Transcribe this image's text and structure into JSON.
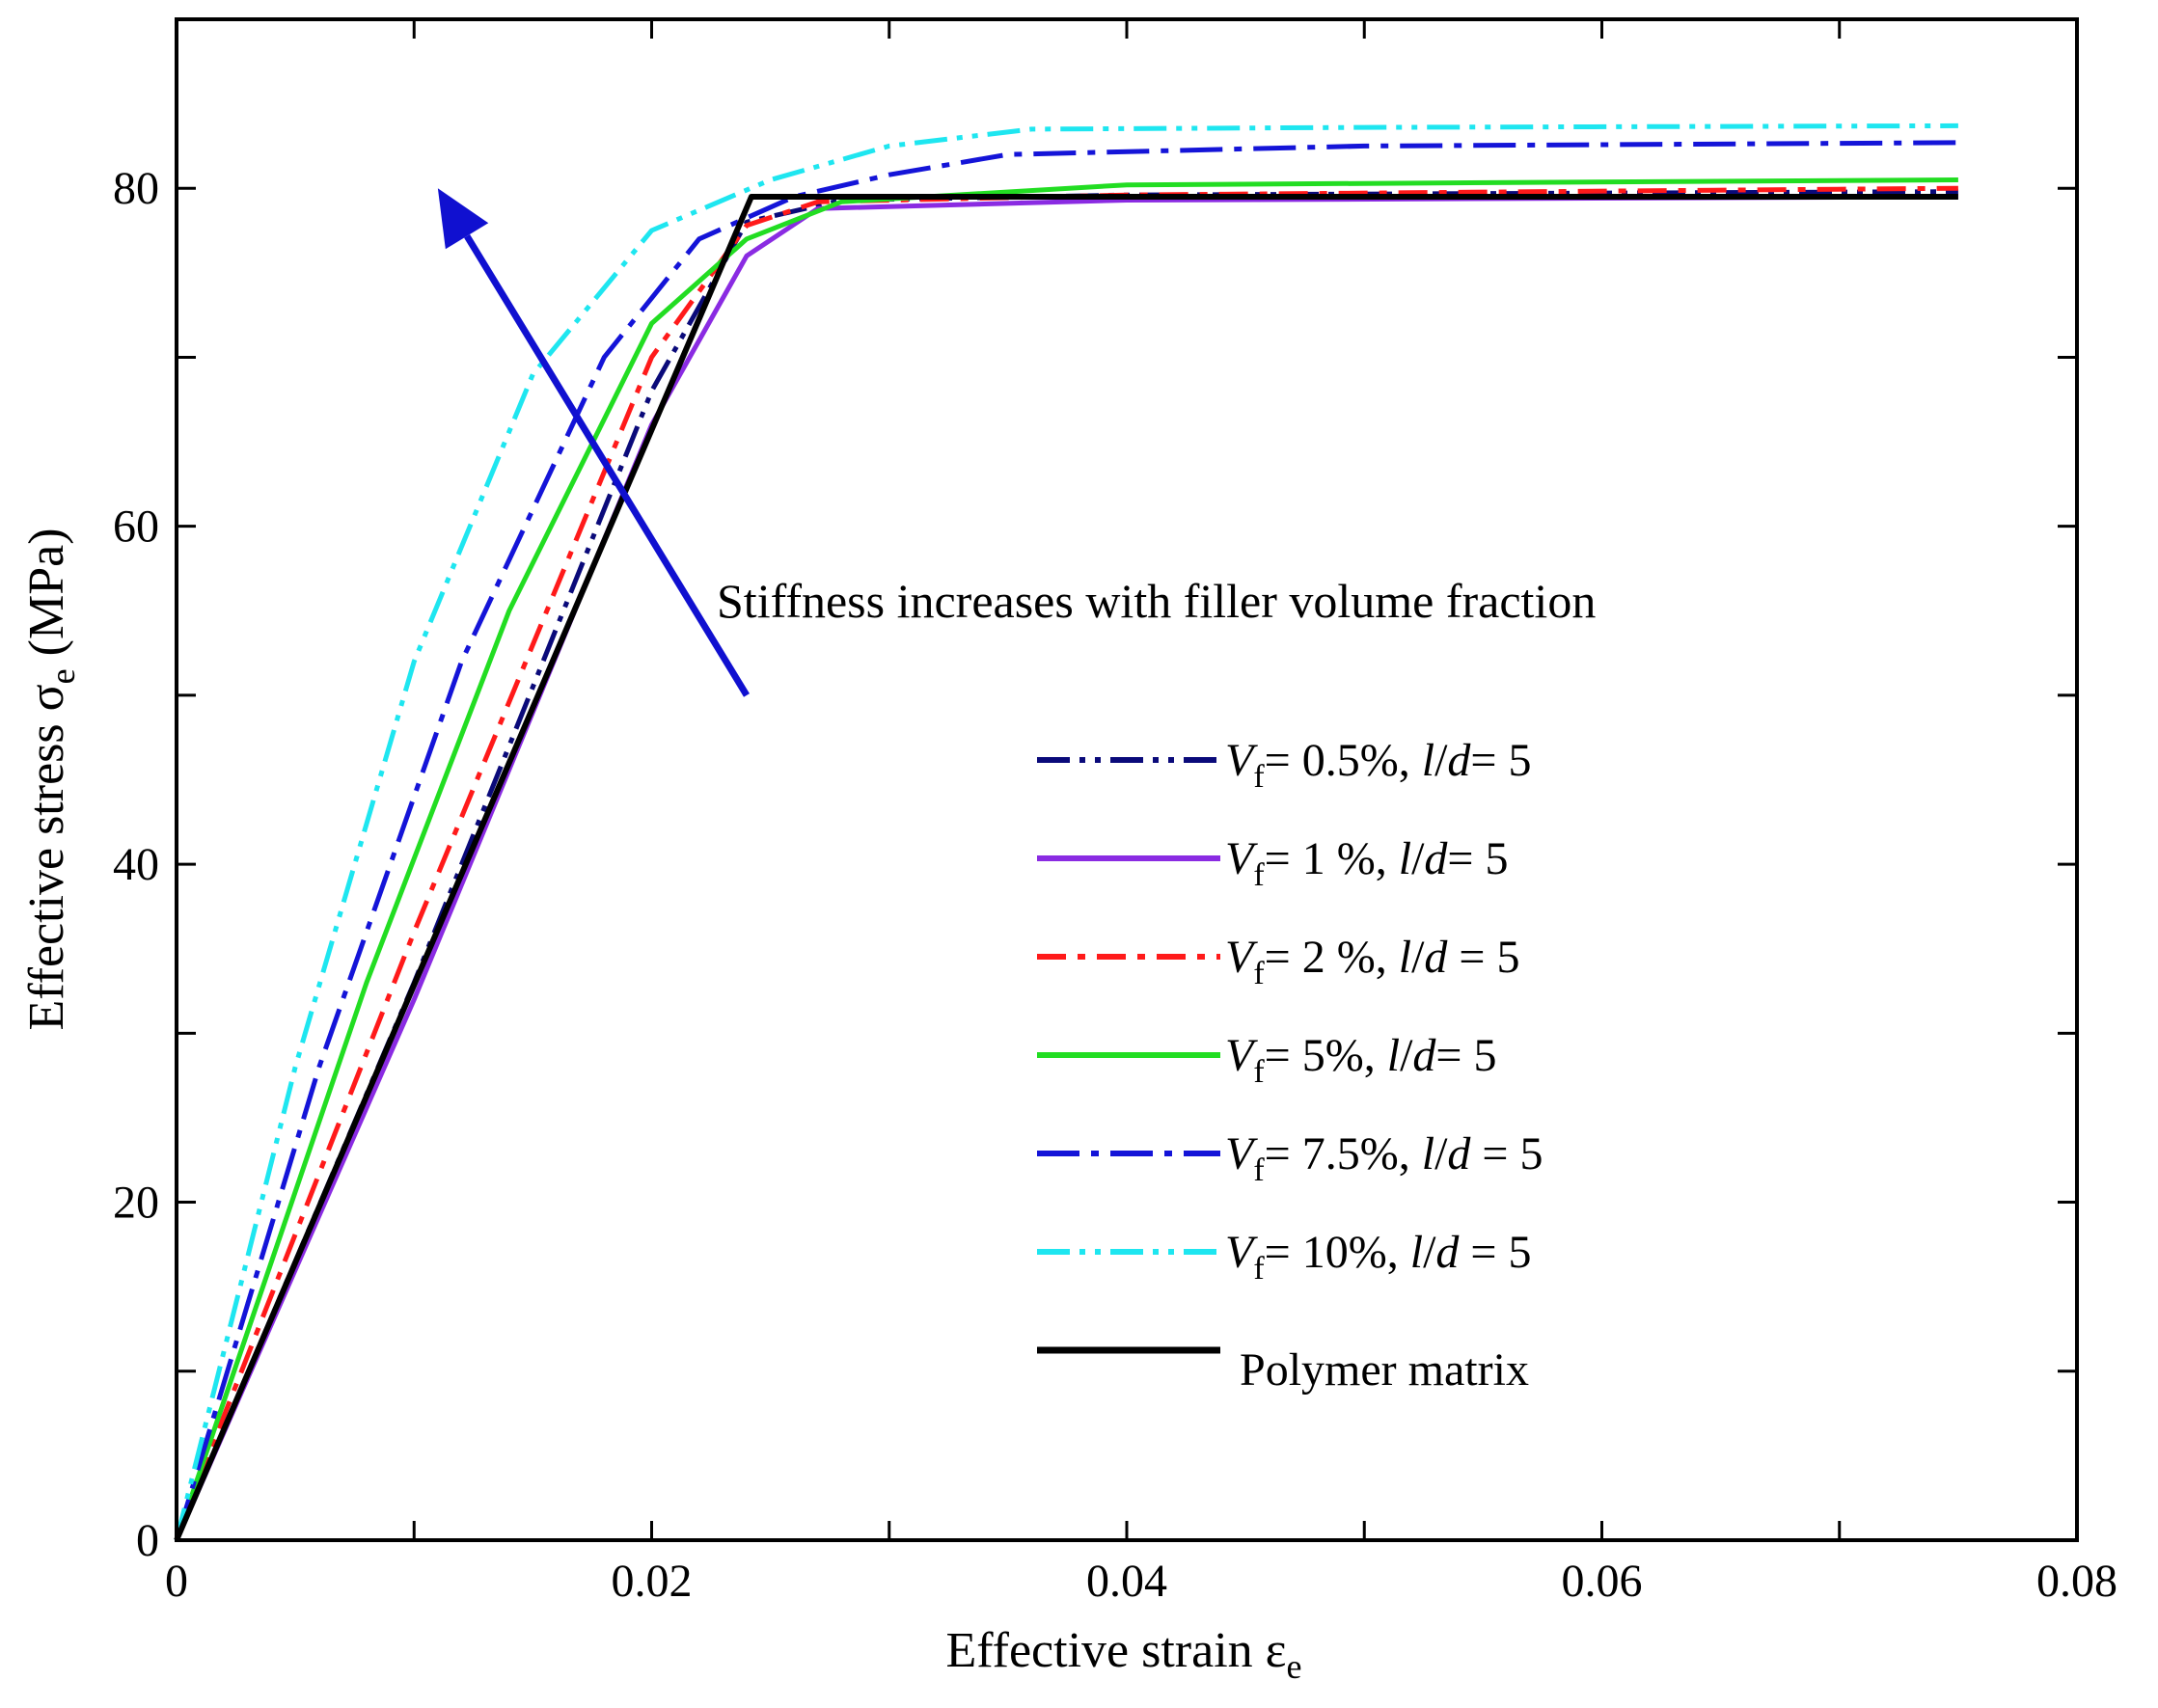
{
  "chart_data": {
    "type": "line",
    "title": "",
    "xlabel": "Effective strain ε",
    "xlabel_sub": "e",
    "ylabel": "Effective stress σ",
    "ylabel_sub": "e",
    "ylabel_unit": " (MPa)",
    "xlim": [
      0,
      0.08
    ],
    "ylim": [
      0,
      90
    ],
    "xticks": [
      0,
      0.02,
      0.04,
      0.06,
      0.08
    ],
    "xtick_labels": [
      "0",
      "0.02",
      "0.04",
      "0.06",
      "0.08"
    ],
    "yticks": [
      0,
      20,
      40,
      60,
      80
    ],
    "ytick_labels": [
      "0",
      "20",
      "40",
      "60",
      "80"
    ],
    "grid": false,
    "legend_position": "lower-right",
    "annotation": "Stiffness increases with filler volume fraction",
    "arrow": {
      "from": [
        0.024,
        50
      ],
      "to": [
        0.011,
        80
      ],
      "color": "#1010d0"
    },
    "series": [
      {
        "name": "Vf= 0.5%, l/d= 5",
        "label": {
          "sym": "V",
          "sub": "f",
          "rest": "= 0.5%, ",
          "ld": "l",
          "ld2": "d",
          "tail": "= 5"
        },
        "color": "#0a0a7a",
        "dash": "34 10 6 10 6 10",
        "points": [
          [
            0,
            0
          ],
          [
            0.01,
            33
          ],
          [
            0.02,
            68
          ],
          [
            0.024,
            78
          ],
          [
            0.028,
            79.3
          ],
          [
            0.04,
            79.6
          ],
          [
            0.075,
            79.8
          ]
        ]
      },
      {
        "name": "Vf= 1 %, l/d= 5",
        "label": {
          "sym": "V",
          "sub": "f",
          "rest": "= 1 %, ",
          "ld": "l",
          "ld2": "d",
          "tail": "= 5"
        },
        "color": "#8a2be2",
        "dash": "",
        "points": [
          [
            0,
            0
          ],
          [
            0.01,
            32
          ],
          [
            0.02,
            66
          ],
          [
            0.024,
            76
          ],
          [
            0.027,
            78.8
          ],
          [
            0.04,
            79.3
          ],
          [
            0.075,
            79.5
          ]
        ]
      },
      {
        "name": "Vf= 2 %, l/d = 5",
        "label": {
          "sym": "V",
          "sub": "f",
          "rest": "= 2 %, ",
          "ld": "l",
          "ld2": "d",
          "tail": " = 5"
        },
        "color": "#ff1a1a",
        "dash": "30 12 8 12",
        "points": [
          [
            0,
            0
          ],
          [
            0.0005,
            2
          ],
          [
            0.01,
            36
          ],
          [
            0.02,
            70
          ],
          [
            0.024,
            77.8
          ],
          [
            0.027,
            79.2
          ],
          [
            0.04,
            79.6
          ],
          [
            0.075,
            80.0
          ]
        ]
      },
      {
        "name": "Vf= 5%, l/d= 5",
        "label": {
          "sym": "V",
          "sub": "f",
          "rest": "= 5%, ",
          "ld": "l",
          "ld2": "d",
          "tail": "= 5"
        },
        "color": "#22dd22",
        "dash": "",
        "points": [
          [
            0,
            0
          ],
          [
            0.008,
            33
          ],
          [
            0.014,
            55
          ],
          [
            0.02,
            72
          ],
          [
            0.024,
            77
          ],
          [
            0.028,
            79.2
          ],
          [
            0.04,
            80.2
          ],
          [
            0.075,
            80.5
          ]
        ]
      },
      {
        "name": "Vf= 7.5%, l/d = 5",
        "label": {
          "sym": "V",
          "sub": "f",
          "rest": "= 7.5%, ",
          "ld": "l",
          "ld2": "d",
          "tail": " = 5"
        },
        "color": "#1414d8",
        "dash": "44 12 8 12",
        "points": [
          [
            0,
            0
          ],
          [
            0.006,
            28
          ],
          [
            0.012,
            52
          ],
          [
            0.018,
            70
          ],
          [
            0.022,
            77
          ],
          [
            0.026,
            79.5
          ],
          [
            0.03,
            80.8
          ],
          [
            0.035,
            82.0
          ],
          [
            0.05,
            82.5
          ],
          [
            0.075,
            82.7
          ]
        ]
      },
      {
        "name": "Vf= 10%, l/d = 5",
        "label": {
          "sym": "V",
          "sub": "f",
          "rest": "= 10%, ",
          "ld": "l",
          "ld2": "d",
          "tail": " = 5"
        },
        "color": "#1ee6f0",
        "dash": "34 10 6 10 6 10",
        "points": [
          [
            0,
            0
          ],
          [
            0.005,
            28
          ],
          [
            0.01,
            52
          ],
          [
            0.015,
            69
          ],
          [
            0.02,
            77.5
          ],
          [
            0.025,
            80.5
          ],
          [
            0.03,
            82.5
          ],
          [
            0.036,
            83.5
          ],
          [
            0.05,
            83.6
          ],
          [
            0.075,
            83.7
          ]
        ]
      },
      {
        "name": "Polymer matrix",
        "label": {
          "plain": "Polymer matrix"
        },
        "color": "#000000",
        "dash": "",
        "points": [
          [
            0,
            0
          ],
          [
            0.0242,
            79.5
          ],
          [
            0.075,
            79.5
          ]
        ]
      }
    ]
  }
}
